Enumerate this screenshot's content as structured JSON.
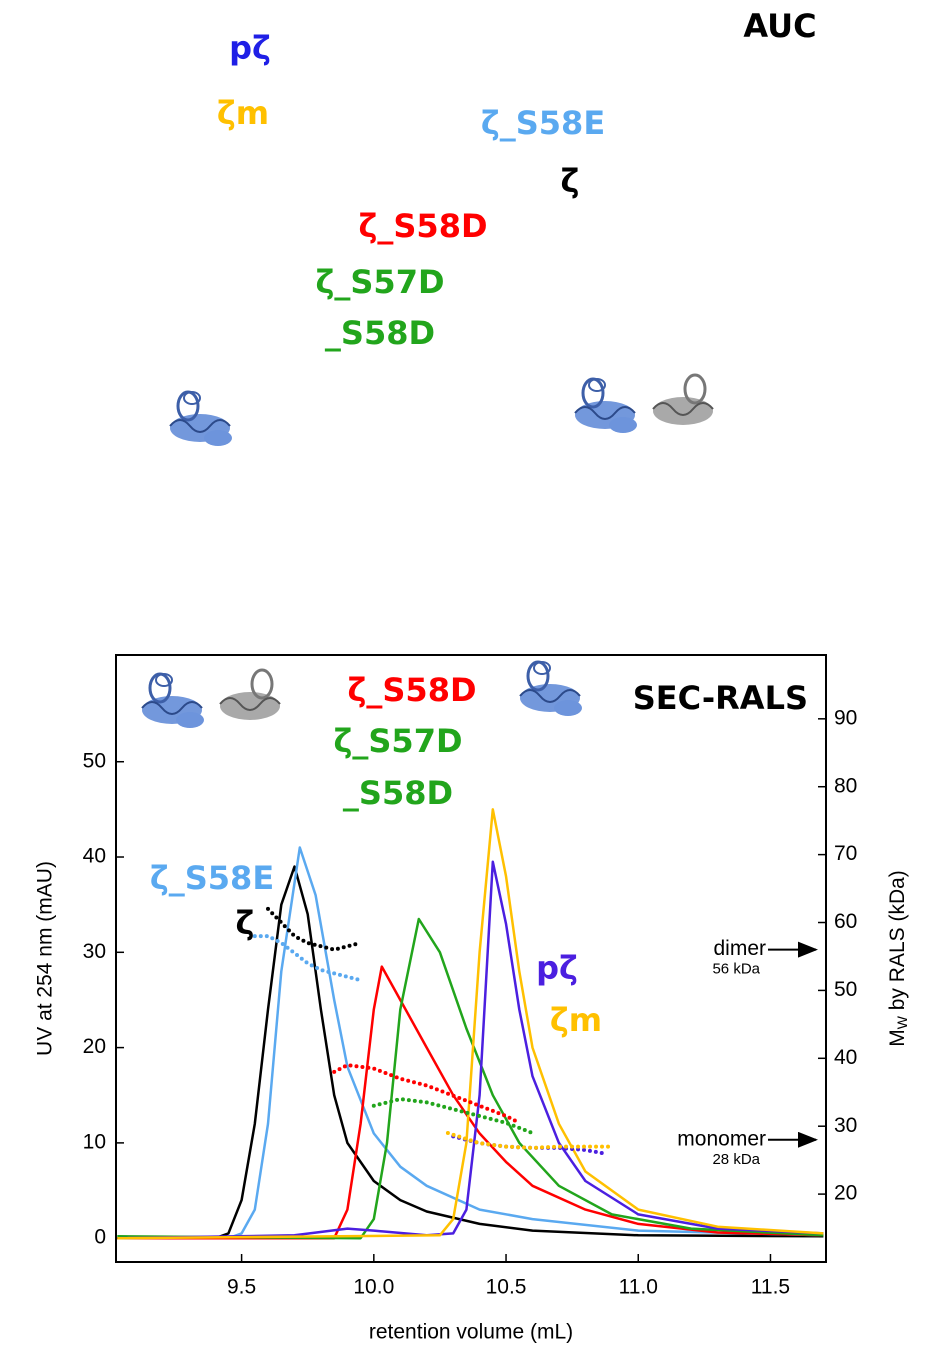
{
  "auc": {
    "title": "AUC",
    "labels": [
      {
        "text": "pζ",
        "color": "#1f1fe6"
      },
      {
        "text": "ζm",
        "color": "#ffc000"
      },
      {
        "text": "ζ_S58E",
        "color": "#5aa9f0"
      },
      {
        "text": "ζ",
        "color": "#000000"
      },
      {
        "text": "ζ_S58D",
        "color": "#ff0000"
      },
      {
        "text": "ζ_S57D",
        "color": "#22a51c"
      },
      {
        "text": "_S58D",
        "color": "#22a51c"
      }
    ]
  },
  "chart_data": {
    "type": "line",
    "title": "SEC-RALS",
    "xlabel": "retention volume (mL)",
    "ylabel": "UV at 254 nm (mAU)",
    "y2label": {
      "main": "M",
      "sub": "W",
      "rest": " by RALS (kDa)"
    },
    "xlim": [
      9.025,
      11.71
    ],
    "xticks": [
      9.5,
      {
        "value": 10,
        "label": "10.0"
      },
      10.5,
      {
        "value": 11,
        "label": "11.0"
      },
      11.5
    ],
    "ylim": [
      -2.5,
      61.2
    ],
    "yticks": [
      0,
      10,
      20,
      30,
      40,
      50
    ],
    "y2lim": [
      10,
      99.4
    ],
    "y2ticks": [
      20,
      30,
      40,
      50,
      60,
      70,
      80,
      90
    ],
    "series": [
      {
        "label": [
          "ζ"
        ],
        "color": "#000000",
        "x": [
          9.03,
          9.4,
          9.45,
          9.5,
          9.55,
          9.6,
          9.65,
          9.7,
          9.75,
          9.8,
          9.85,
          9.9,
          10.0,
          10.1,
          10.2,
          10.4,
          10.6,
          11.0,
          11.7
        ],
        "values": [
          0,
          0,
          0.5,
          4,
          12,
          24,
          35,
          39,
          34,
          24,
          15,
          10,
          6,
          4,
          2.8,
          1.5,
          0.8,
          0.3,
          0.2
        ]
      },
      {
        "label": [
          "ζ_S58E"
        ],
        "color": "#5aa9f0",
        "x": [
          9.03,
          9.45,
          9.5,
          9.55,
          9.6,
          9.65,
          9.72,
          9.78,
          9.85,
          9.9,
          10.0,
          10.1,
          10.2,
          10.4,
          10.6,
          11.0,
          11.7
        ],
        "values": [
          0,
          0,
          0.5,
          3,
          12,
          28,
          41,
          36,
          25,
          18,
          11,
          7.5,
          5.5,
          3,
          2,
          0.8,
          0.3
        ]
      },
      {
        "label": [
          "ζ_S58D"
        ],
        "color": "#ff0000",
        "x": [
          9.03,
          9.85,
          9.9,
          9.95,
          10.0,
          10.03,
          10.08,
          10.2,
          10.3,
          10.4,
          10.5,
          10.6,
          10.8,
          11.0,
          11.3,
          11.7
        ],
        "values": [
          0,
          0,
          3,
          12,
          24,
          28.5,
          26,
          20,
          15,
          11,
          8,
          5.5,
          3,
          1.5,
          0.6,
          0.3
        ]
      },
      {
        "label": [
          "ζ_S57D",
          "_S58D"
        ],
        "color": "#22a51c",
        "x": [
          9.03,
          9.95,
          10.0,
          10.05,
          10.1,
          10.17,
          10.25,
          10.35,
          10.45,
          10.55,
          10.7,
          10.9,
          11.2,
          11.7
        ],
        "values": [
          0.2,
          0,
          2,
          10,
          24,
          33.5,
          30,
          22,
          15,
          10,
          5.5,
          2.5,
          1,
          0.3
        ]
      },
      {
        "label": [
          "pζ"
        ],
        "color": "#4b1fe0",
        "x": [
          9.03,
          9.7,
          9.9,
          10.0,
          10.2,
          10.3,
          10.35,
          10.4,
          10.45,
          10.5,
          10.55,
          10.6,
          10.7,
          10.8,
          11.0,
          11.3,
          11.7
        ],
        "values": [
          0,
          0.3,
          1,
          0.8,
          0.3,
          0.5,
          3,
          15,
          39.5,
          33,
          24,
          17,
          10,
          6,
          2.5,
          1,
          0.5
        ]
      },
      {
        "label": [
          "ζm"
        ],
        "color": "#ffc000",
        "x": [
          9.03,
          10.25,
          10.3,
          10.35,
          10.4,
          10.45,
          10.5,
          10.55,
          10.6,
          10.7,
          10.8,
          11.0,
          11.3,
          11.7
        ],
        "values": [
          0,
          0.3,
          2,
          10,
          30,
          45,
          38,
          28,
          20,
          12,
          7,
          3,
          1.2,
          0.5
        ]
      },
      {
        "axis": "y2",
        "style": "dotted",
        "color": "#000000",
        "x": [
          9.6,
          9.65,
          9.7,
          9.75,
          9.8,
          9.85,
          9.9,
          9.95
        ],
        "values": [
          62,
          60,
          58,
          57,
          56.5,
          56,
          56.5,
          57
        ]
      },
      {
        "axis": "y2",
        "style": "dotted",
        "color": "#5aa9f0",
        "x": [
          9.55,
          9.6,
          9.65,
          9.7,
          9.75,
          9.8,
          9.85,
          9.9,
          9.95
        ],
        "values": [
          58,
          58,
          57,
          55.5,
          54,
          53,
          52.5,
          52,
          51.5
        ]
      },
      {
        "axis": "y2",
        "style": "dotted",
        "color": "#ff0000",
        "x": [
          9.85,
          9.9,
          10.0,
          10.1,
          10.2,
          10.3,
          10.4,
          10.5,
          10.55
        ],
        "values": [
          38,
          39,
          38.5,
          37,
          36,
          34.5,
          33,
          31.5,
          30.5
        ]
      },
      {
        "axis": "y2",
        "style": "dotted",
        "color": "#22a51c",
        "x": [
          10.0,
          10.1,
          10.2,
          10.3,
          10.4,
          10.5,
          10.6
        ],
        "values": [
          33,
          34,
          33.5,
          32.5,
          31.5,
          30.5,
          29
        ]
      },
      {
        "axis": "y2",
        "style": "dotted",
        "color": "#4b1fe0",
        "x": [
          10.3,
          10.4,
          10.5,
          10.6,
          10.7,
          10.8,
          10.87
        ],
        "values": [
          28.5,
          27.5,
          27,
          26.8,
          26.8,
          26.5,
          26
        ]
      },
      {
        "axis": "y2",
        "style": "dotted",
        "color": "#ffc000",
        "x": [
          10.28,
          10.4,
          10.5,
          10.6,
          10.7,
          10.8,
          10.9
        ],
        "values": [
          29,
          27.5,
          27,
          26.8,
          27,
          27,
          27
        ]
      }
    ],
    "markers": [
      {
        "label": "dimer",
        "sublabel": "56 kDa",
        "value": 56
      },
      {
        "label": "monomer",
        "sublabel": "28 kDa",
        "value": 28
      }
    ]
  }
}
